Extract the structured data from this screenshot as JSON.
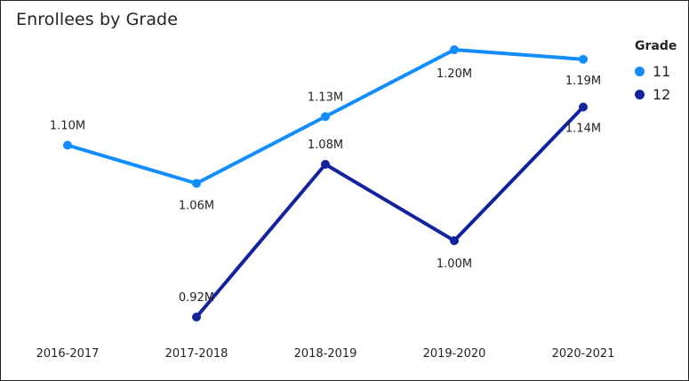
{
  "chart_data": {
    "type": "line",
    "title": "Enrollees by Grade",
    "xlabel": "",
    "ylabel": "",
    "categories": [
      "2016-2017",
      "2017-2018",
      "2018-2019",
      "2019-2020",
      "2020-2021"
    ],
    "legend_title": "Grade",
    "legend_position": "top-right",
    "grid": false,
    "series": [
      {
        "name": "11",
        "color": "#118DFF",
        "values": [
          1.1,
          1.06,
          1.13,
          1.2,
          1.19
        ],
        "labels": [
          "1.10M",
          "1.06M",
          "1.13M",
          "1.20M",
          "1.19M"
        ]
      },
      {
        "name": "12",
        "color": "#12239E",
        "values": [
          null,
          0.92,
          1.08,
          1.0,
          1.14
        ],
        "labels": [
          "",
          "0.92M",
          "1.08M",
          "1.00M",
          "1.14M"
        ]
      }
    ]
  }
}
